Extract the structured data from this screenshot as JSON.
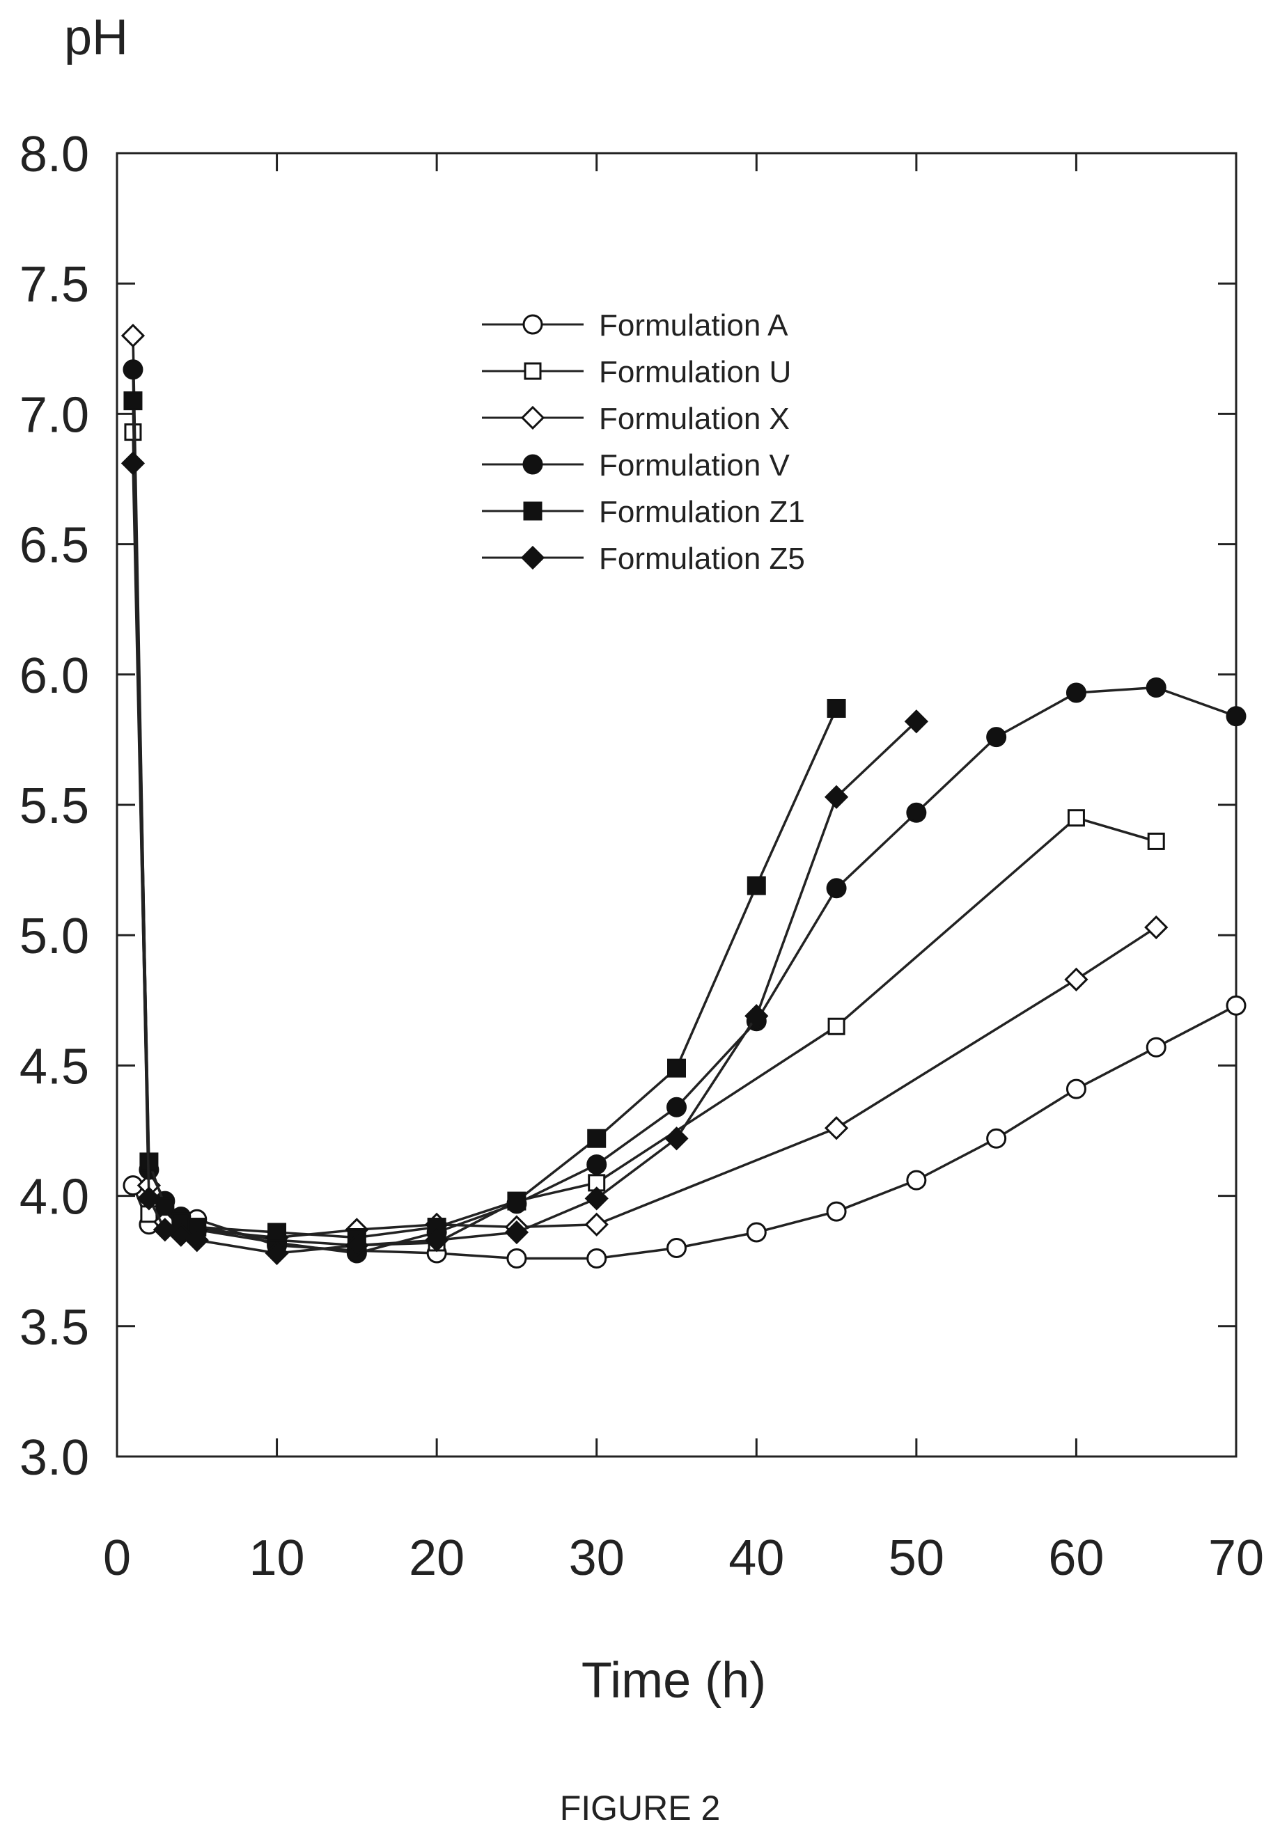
{
  "caption": "FIGURE 2",
  "chart_data": {
    "type": "line",
    "xlabel": "Time (h)",
    "ylabel": "pH",
    "xlim": [
      0,
      70
    ],
    "ylim": [
      3.0,
      8.0
    ],
    "xticks": [
      0,
      10,
      20,
      30,
      40,
      50,
      60,
      70
    ],
    "xtick_labels": [
      "0",
      "10",
      "20",
      "30",
      "40",
      "50",
      "60",
      "70"
    ],
    "yticks": [
      3.0,
      3.5,
      4.0,
      4.5,
      5.0,
      5.5,
      6.0,
      6.5,
      7.0,
      7.5,
      8.0
    ],
    "ytick_labels": [
      "3.0",
      "3.5",
      "4.0",
      "4.5",
      "5.0",
      "5.5",
      "6.0",
      "6.5",
      "7.0",
      "7.5",
      "8.0"
    ],
    "grid": false,
    "legend_position": "upper-center",
    "series": [
      {
        "name": "Formulation A",
        "marker": "open-circle",
        "points": [
          [
            1,
            4.04
          ],
          [
            2,
            3.89
          ],
          [
            3,
            3.91
          ],
          [
            4,
            3.91
          ],
          [
            5,
            3.91
          ],
          [
            10,
            3.81
          ],
          [
            15,
            3.79
          ],
          [
            20,
            3.78
          ],
          [
            25,
            3.76
          ],
          [
            30,
            3.76
          ],
          [
            35,
            3.8
          ],
          [
            40,
            3.86
          ],
          [
            45,
            3.94
          ],
          [
            50,
            4.06
          ],
          [
            55,
            4.22
          ],
          [
            60,
            4.41
          ],
          [
            65,
            4.57
          ],
          [
            70,
            4.73
          ]
        ]
      },
      {
        "name": "Formulation U",
        "marker": "open-square",
        "points": [
          [
            1,
            6.93
          ],
          [
            2,
            3.93
          ],
          [
            3,
            3.9
          ],
          [
            4,
            3.9
          ],
          [
            5,
            3.88
          ],
          [
            10,
            3.83
          ],
          [
            15,
            3.81
          ],
          [
            20,
            3.82
          ],
          [
            25,
            3.98
          ],
          [
            30,
            4.05
          ],
          [
            45,
            4.65
          ],
          [
            60,
            5.45
          ],
          [
            65,
            5.36
          ]
        ]
      },
      {
        "name": "Formulation X",
        "marker": "open-diamond",
        "points": [
          [
            1,
            7.3
          ],
          [
            2,
            4.04
          ],
          [
            3,
            3.9
          ],
          [
            4,
            3.88
          ],
          [
            5,
            3.87
          ],
          [
            10,
            3.84
          ],
          [
            15,
            3.87
          ],
          [
            20,
            3.89
          ],
          [
            25,
            3.88
          ],
          [
            30,
            3.89
          ],
          [
            45,
            4.26
          ],
          [
            60,
            4.83
          ],
          [
            65,
            5.03
          ]
        ]
      },
      {
        "name": "Formulation V",
        "marker": "filled-circle",
        "points": [
          [
            1,
            7.17
          ],
          [
            2,
            4.1
          ],
          [
            3,
            3.98
          ],
          [
            4,
            3.92
          ],
          [
            5,
            3.87
          ],
          [
            10,
            3.82
          ],
          [
            15,
            3.78
          ],
          [
            20,
            3.86
          ],
          [
            25,
            3.97
          ],
          [
            30,
            4.12
          ],
          [
            35,
            4.34
          ],
          [
            40,
            4.67
          ],
          [
            45,
            5.18
          ],
          [
            50,
            5.47
          ],
          [
            55,
            5.76
          ],
          [
            60,
            5.93
          ],
          [
            65,
            5.95
          ],
          [
            70,
            5.84
          ]
        ]
      },
      {
        "name": "Formulation Z1",
        "marker": "filled-square",
        "points": [
          [
            1,
            7.05
          ],
          [
            2,
            4.13
          ],
          [
            3,
            3.96
          ],
          [
            4,
            3.9
          ],
          [
            5,
            3.88
          ],
          [
            10,
            3.86
          ],
          [
            15,
            3.84
          ],
          [
            20,
            3.88
          ],
          [
            25,
            3.98
          ],
          [
            30,
            4.22
          ],
          [
            35,
            4.49
          ],
          [
            40,
            5.19
          ],
          [
            45,
            5.87
          ]
        ]
      },
      {
        "name": "Formulation Z5",
        "marker": "filled-diamond",
        "points": [
          [
            1,
            6.81
          ],
          [
            2,
            3.99
          ],
          [
            3,
            3.87
          ],
          [
            4,
            3.85
          ],
          [
            5,
            3.83
          ],
          [
            10,
            3.78
          ],
          [
            15,
            3.81
          ],
          [
            20,
            3.83
          ],
          [
            25,
            3.86
          ],
          [
            30,
            3.99
          ],
          [
            35,
            4.22
          ],
          [
            40,
            4.69
          ],
          [
            45,
            5.53
          ],
          [
            50,
            5.82
          ]
        ]
      }
    ]
  }
}
